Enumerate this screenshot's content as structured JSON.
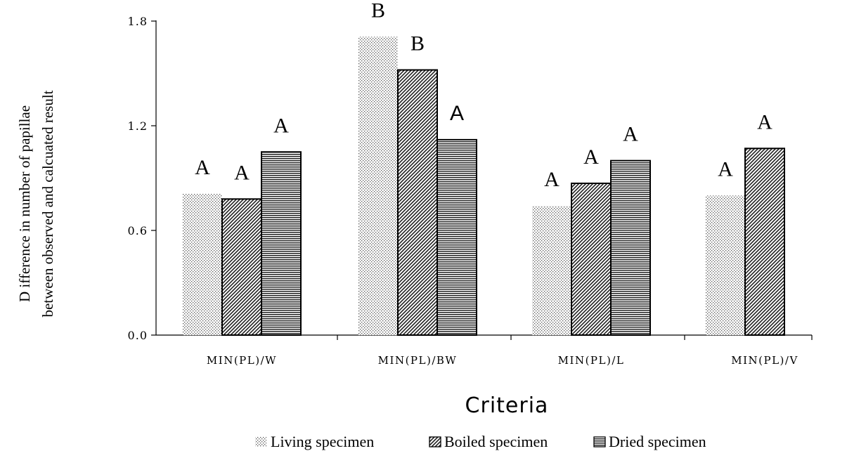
{
  "chart_data": {
    "type": "bar",
    "title": "",
    "xlabel": "Criteria",
    "ylabel_lines": [
      "D ifference in number of papillae",
      "between observed and calcuated result"
    ],
    "ylim": [
      0,
      1.8
    ],
    "yticks": [
      "0.0",
      "0.6",
      "1.2",
      "1.8"
    ],
    "ytick_values": [
      0,
      0.6,
      1.2,
      1.8
    ],
    "grid": false,
    "legend_position": "bottom",
    "categories": [
      "MIN(PL)/W",
      "MIN(PL)/BW",
      "MIN(PL)/L",
      "MIN(PL)/V"
    ],
    "series": [
      {
        "name": "Living specimen",
        "pattern": "dots",
        "values": [
          0.81,
          1.71,
          0.74,
          0.8
        ],
        "letters": [
          "A",
          "B",
          "A",
          "A"
        ],
        "letter_style": [
          "serif",
          "serif",
          "serif",
          "serif"
        ]
      },
      {
        "name": "Boiled specimen",
        "pattern": "diagonal",
        "values": [
          0.78,
          1.52,
          0.87,
          1.07
        ],
        "letters": [
          "A",
          "B",
          "A",
          "A"
        ],
        "letter_style": [
          "serif",
          "serif",
          "serif",
          "serif"
        ]
      },
      {
        "name": "Dried specimen",
        "pattern": "horizontal",
        "values": [
          1.05,
          1.12,
          1.0,
          null
        ],
        "letters": [
          "A",
          "A",
          "A",
          null
        ],
        "letter_style": [
          "serif",
          "sans",
          "serif",
          null
        ]
      }
    ]
  }
}
